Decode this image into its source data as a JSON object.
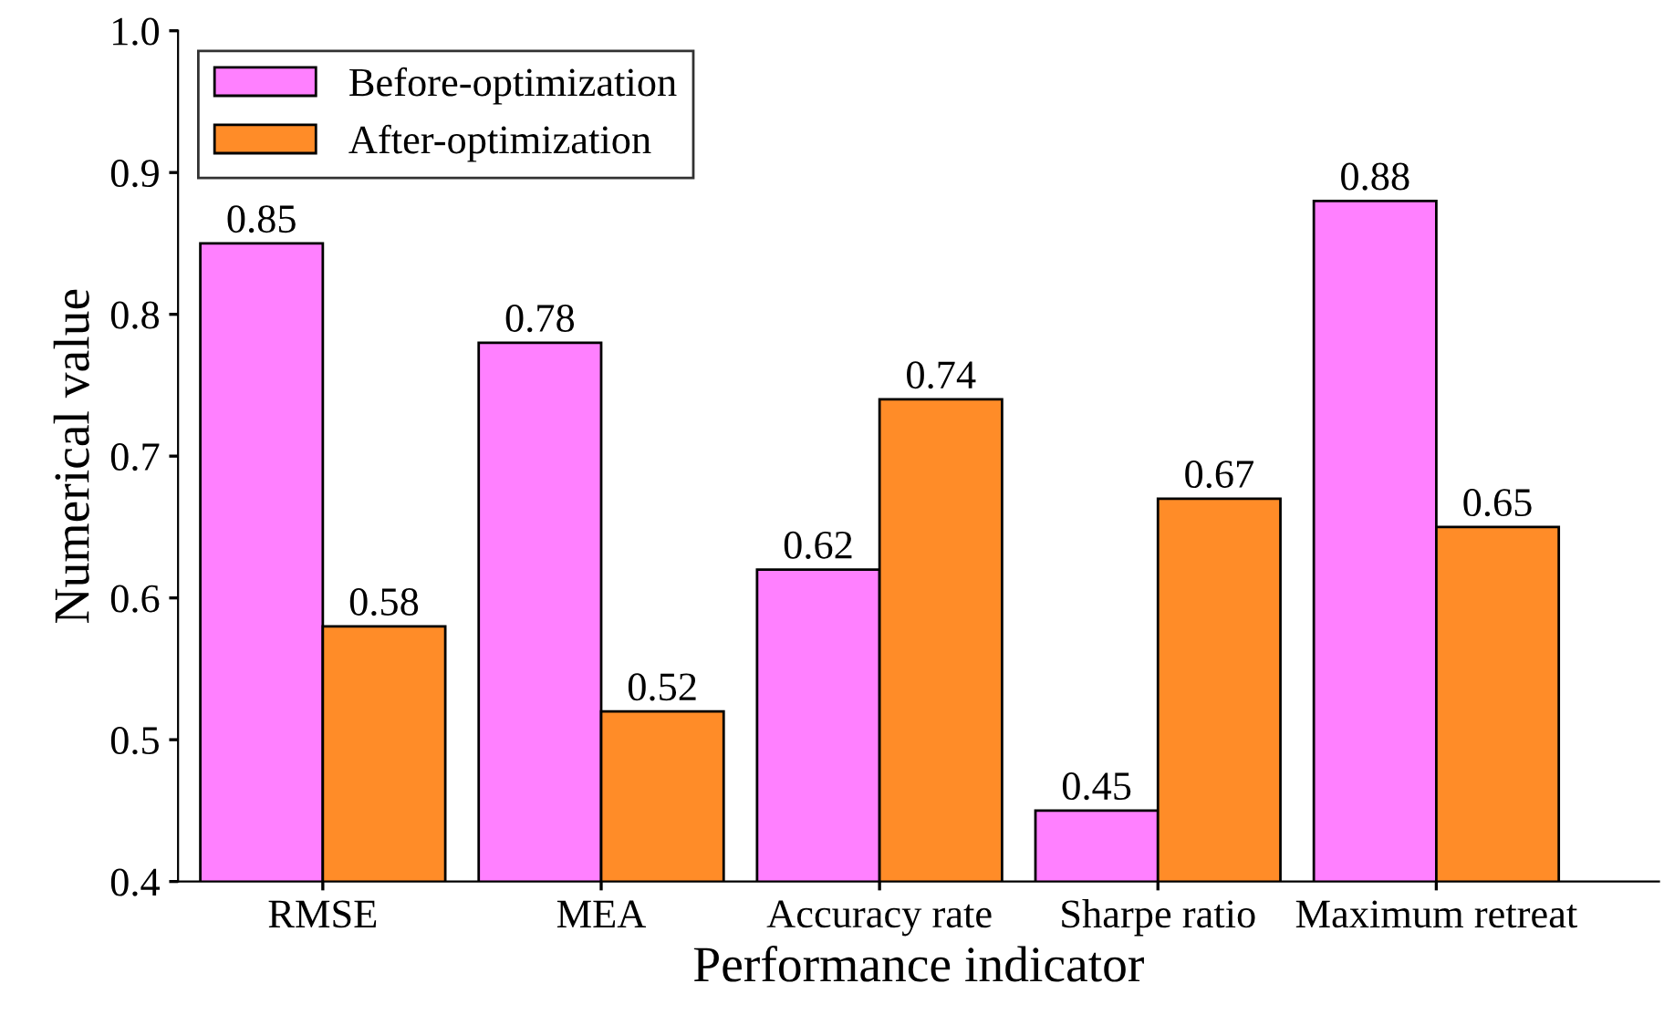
{
  "chart_data": {
    "type": "bar",
    "xlabel": "Performance indicator",
    "ylabel": "Numerical value",
    "categories": [
      "RMSE",
      "MEA",
      "Accuracy rate",
      "Sharpe ratio",
      "Maximum retreat"
    ],
    "series": [
      {
        "name": "Before-optimization",
        "color": "#ff80ff",
        "values": [
          0.85,
          0.78,
          0.62,
          0.45,
          0.88
        ]
      },
      {
        "name": "After-optimization",
        "color": "#ff8c28",
        "values": [
          0.58,
          0.52,
          0.74,
          0.67,
          0.65
        ]
      }
    ],
    "ylim": [
      0.4,
      1.0
    ],
    "yticks": [
      0.4,
      0.5,
      0.6,
      0.7,
      0.8,
      0.9,
      {
        "value": 1.0,
        "label": "1.0"
      }
    ],
    "data_labels": true,
    "legend": "top left",
    "grid": false
  }
}
